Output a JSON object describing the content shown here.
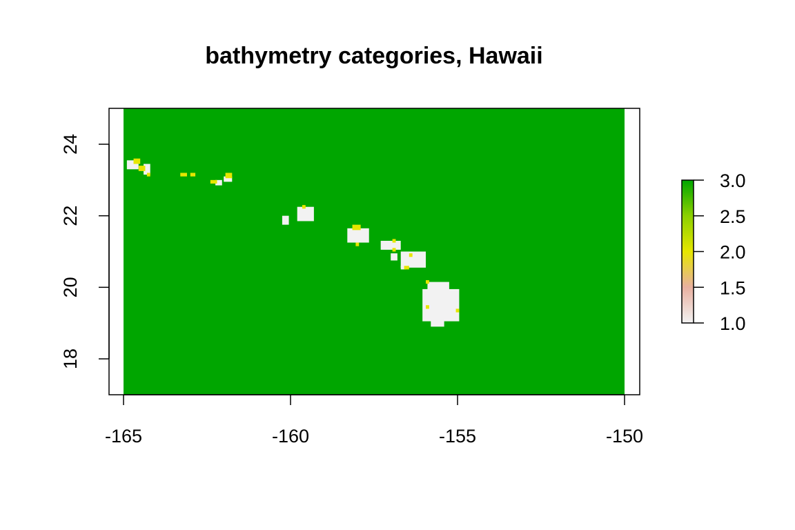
{
  "chart_data": {
    "type": "heatmap",
    "title": "bathymetry categories, Hawaii",
    "xlabel": "",
    "ylabel": "",
    "xlim": [
      -165,
      -150
    ],
    "ylim": [
      17,
      25
    ],
    "x_ticks": [
      -165,
      -160,
      -155,
      -150
    ],
    "y_ticks": [
      18,
      20,
      22,
      24
    ],
    "x_tick_labels": [
      "-165",
      "-160",
      "-155",
      "-150"
    ],
    "y_tick_labels": [
      "18",
      "20",
      "22",
      "24"
    ],
    "value_range": [
      1,
      3
    ],
    "legend": {
      "type": "colorbar",
      "placement": "right",
      "ticks": [
        1.0,
        1.5,
        2.0,
        2.5,
        3.0
      ],
      "tick_labels": [
        "1.0",
        "1.5",
        "2.0",
        "2.5",
        "3.0"
      ]
    },
    "colors": {
      "category_1": "#f2f2f2",
      "category_2": "#e6e600",
      "category_3": "#00a600"
    },
    "background_category": 3,
    "regions_category_1": [
      {
        "name": "Niihau-Kauai-area",
        "lon": [
          -164.9,
          -164.55
        ],
        "lat": [
          23.3,
          23.55
        ]
      },
      {
        "name": "Kaula",
        "lon": [
          -164.4,
          -164.2
        ],
        "lat": [
          23.15,
          23.45
        ]
      },
      {
        "name": "small-island-a",
        "lon": [
          -162.25,
          -162.05
        ],
        "lat": [
          22.85,
          23.0
        ]
      },
      {
        "name": "small-island-b",
        "lon": [
          -162.0,
          -161.75
        ],
        "lat": [
          22.95,
          23.1
        ]
      },
      {
        "name": "Kauai",
        "lon": [
          -159.8,
          -159.3
        ],
        "lat": [
          21.85,
          22.25
        ]
      },
      {
        "name": "Niihau",
        "lon": [
          -160.25,
          -160.05
        ],
        "lat": [
          21.75,
          22.0
        ]
      },
      {
        "name": "Oahu",
        "lon": [
          -158.3,
          -157.65
        ],
        "lat": [
          21.25,
          21.65
        ]
      },
      {
        "name": "Molokai",
        "lon": [
          -157.3,
          -156.7
        ],
        "lat": [
          21.05,
          21.3
        ]
      },
      {
        "name": "Lanai",
        "lon": [
          -157.0,
          -156.8
        ],
        "lat": [
          20.75,
          20.95
        ]
      },
      {
        "name": "Maui",
        "lon": [
          -156.7,
          -155.95
        ],
        "lat": [
          20.55,
          21.0
        ]
      },
      {
        "name": "Kahoolawe",
        "lon": [
          -156.7,
          -156.55
        ],
        "lat": [
          20.5,
          20.6
        ]
      },
      {
        "name": "Hawaii-north",
        "lon": [
          -155.9,
          -155.25
        ],
        "lat": [
          19.9,
          20.15
        ]
      },
      {
        "name": "Hawaii",
        "lon": [
          -156.05,
          -154.95
        ],
        "lat": [
          19.05,
          19.95
        ]
      },
      {
        "name": "Hawaii-south",
        "lon": [
          -155.8,
          -155.4
        ],
        "lat": [
          18.9,
          19.1
        ]
      }
    ],
    "regions_category_2": [
      {
        "name": "ring-a",
        "lon": [
          -164.7,
          -164.5
        ],
        "lat": [
          23.45,
          23.6
        ]
      },
      {
        "name": "ring-b",
        "lon": [
          -164.55,
          -164.35
        ],
        "lat": [
          23.25,
          23.4
        ]
      },
      {
        "name": "ring-c",
        "lon": [
          -164.3,
          -164.2
        ],
        "lat": [
          23.1,
          23.2
        ]
      },
      {
        "name": "bank-a",
        "lon": [
          -163.3,
          -163.1
        ],
        "lat": [
          23.1,
          23.2
        ]
      },
      {
        "name": "bank-b",
        "lon": [
          -163.0,
          -162.85
        ],
        "lat": [
          23.1,
          23.2
        ]
      },
      {
        "name": "bank-c",
        "lon": [
          -162.4,
          -162.2
        ],
        "lat": [
          22.9,
          23.0
        ]
      },
      {
        "name": "bank-d",
        "lon": [
          -161.95,
          -161.75
        ],
        "lat": [
          23.05,
          23.2
        ]
      },
      {
        "name": "kauai-dot",
        "lon": [
          -159.65,
          -159.55
        ],
        "lat": [
          22.2,
          22.3
        ]
      },
      {
        "name": "oahu-a",
        "lon": [
          -158.15,
          -157.9
        ],
        "lat": [
          21.6,
          21.75
        ]
      },
      {
        "name": "oahu-b",
        "lon": [
          -158.05,
          -157.95
        ],
        "lat": [
          21.15,
          21.25
        ]
      },
      {
        "name": "molokai-dot",
        "lon": [
          -156.95,
          -156.85
        ],
        "lat": [
          21.25,
          21.35
        ]
      },
      {
        "name": "lanai-dot",
        "lon": [
          -156.95,
          -156.85
        ],
        "lat": [
          21.0,
          21.1
        ]
      },
      {
        "name": "maui-dot-a",
        "lon": [
          -156.45,
          -156.35
        ],
        "lat": [
          20.85,
          20.95
        ]
      },
      {
        "name": "maui-dot-b",
        "lon": [
          -156.6,
          -156.45
        ],
        "lat": [
          20.5,
          20.6
        ]
      },
      {
        "name": "hawaii-dot-a",
        "lon": [
          -155.95,
          -155.85
        ],
        "lat": [
          20.1,
          20.2
        ]
      },
      {
        "name": "hawaii-dot-b",
        "lon": [
          -155.95,
          -155.85
        ],
        "lat": [
          19.4,
          19.5
        ]
      },
      {
        "name": "hawaii-dot-c",
        "lon": [
          -155.05,
          -154.95
        ],
        "lat": [
          19.3,
          19.4
        ]
      }
    ]
  }
}
